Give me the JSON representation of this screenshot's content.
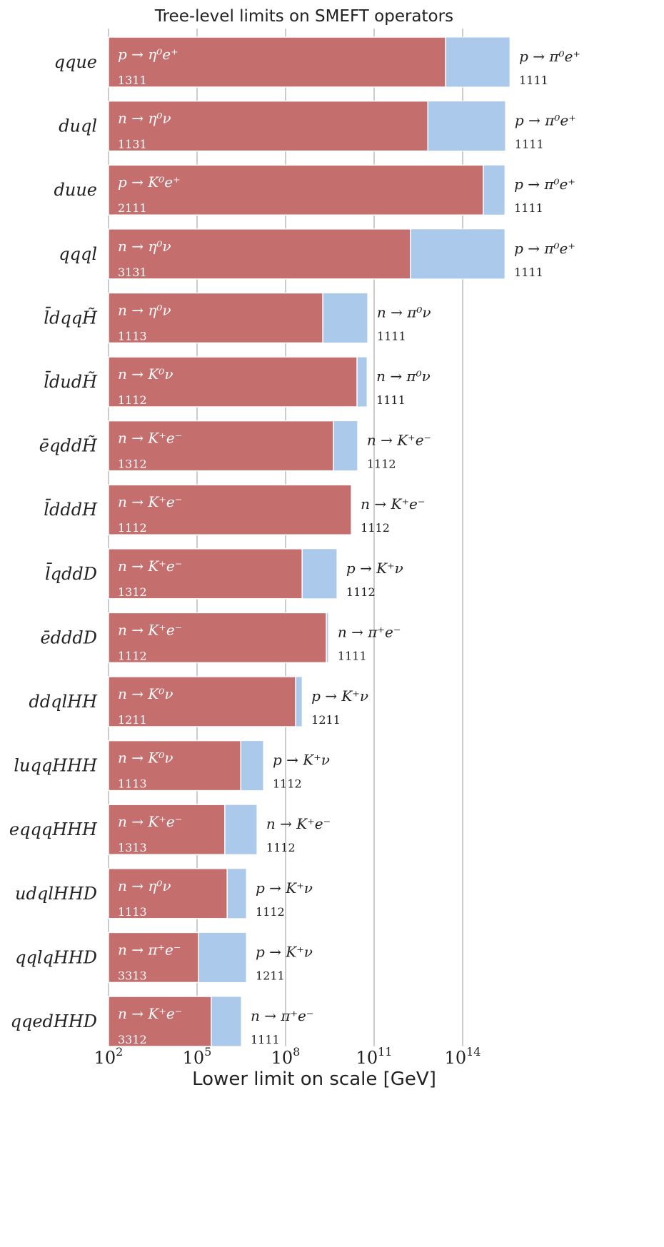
{
  "chart_data": {
    "type": "bar",
    "orientation": "horizontal",
    "title": "Tree-level limits on SMEFT operators",
    "xlabel": "Lower limit on scale [GeV]",
    "xscale": "log",
    "xlim_log10": [
      2,
      16
    ],
    "xticks": [
      {
        "exp": 2,
        "label": "10",
        "sup": "2"
      },
      {
        "exp": 5,
        "label": "10",
        "sup": "5"
      },
      {
        "exp": 8,
        "label": "10",
        "sup": "8"
      },
      {
        "exp": 11,
        "label": "10",
        "sup": "11"
      },
      {
        "exp": 14,
        "label": "10",
        "sup": "14"
      }
    ],
    "grid": "vertical",
    "colors": {
      "red": "#c46e6e",
      "blue": "#abc9eb"
    },
    "series_names": [
      "red: limit from channel labelled inside bar",
      "blue: limit from channel labelled beside bar"
    ],
    "rows": [
      {
        "operator": "qque",
        "red_log10": 13.42,
        "red_channel": "p → η⁰e⁺",
        "red_flavour": "1311",
        "blue_log10": 15.6,
        "blue_channel": "p → π⁰e⁺",
        "blue_flavour": "1111"
      },
      {
        "operator": "duql",
        "red_log10": 12.82,
        "red_channel": "n → η⁰ν",
        "red_flavour": "1131",
        "blue_log10": 15.45,
        "blue_channel": "p → π⁰e⁺",
        "blue_flavour": "1111"
      },
      {
        "operator": "duue",
        "red_log10": 14.7,
        "red_channel": "p → K⁰e⁺",
        "red_flavour": "2111",
        "blue_log10": 15.43,
        "blue_channel": "p → π⁰e⁺",
        "blue_flavour": "1111"
      },
      {
        "operator": "qqql",
        "red_log10": 12.23,
        "red_channel": "n → η⁰ν",
        "red_flavour": "3131",
        "blue_log10": 15.43,
        "blue_channel": "p → π⁰e⁺",
        "blue_flavour": "1111"
      },
      {
        "operator": "l̄dqqH̃",
        "red_log10": 9.26,
        "red_channel": "n → η⁰ν",
        "red_flavour": "1113",
        "blue_log10": 10.78,
        "blue_channel": "n → π⁰ν",
        "blue_flavour": "1111"
      },
      {
        "operator": "l̄dudH̃",
        "red_log10": 10.42,
        "red_channel": "n → K⁰ν",
        "red_flavour": "1112",
        "blue_log10": 10.76,
        "blue_channel": "n → π⁰ν",
        "blue_flavour": "1111"
      },
      {
        "operator": "ēqddH̃",
        "red_log10": 9.62,
        "red_channel": "n → K⁺e⁻",
        "red_flavour": "1312",
        "blue_log10": 10.44,
        "blue_channel": "n → K⁺e⁻",
        "blue_flavour": "1112"
      },
      {
        "operator": "l̄dddH",
        "red_log10": 10.23,
        "red_channel": "n → K⁺e⁻",
        "red_flavour": "1112",
        "blue_log10": 10.23,
        "blue_channel": "n → K⁺e⁻",
        "blue_flavour": "1112"
      },
      {
        "operator": "l̄qddD",
        "red_log10": 8.56,
        "red_channel": "n → K⁺e⁻",
        "red_flavour": "1312",
        "blue_log10": 9.74,
        "blue_channel": "p → K⁺ν",
        "blue_flavour": "1112"
      },
      {
        "operator": "ēdddD",
        "red_log10": 9.38,
        "red_channel": "n → K⁺e⁻",
        "red_flavour": "1112",
        "blue_log10": 9.45,
        "blue_channel": "n → π⁺e⁻",
        "blue_flavour": "1111"
      },
      {
        "operator": "ddqlHH",
        "red_log10": 8.34,
        "red_channel": "n → K⁰ν",
        "red_flavour": "1211",
        "blue_log10": 8.56,
        "blue_channel": "p → K⁺ν",
        "blue_flavour": "1211"
      },
      {
        "operator": "luqqHHH",
        "red_log10": 6.48,
        "red_channel": "n → K⁰ν",
        "red_flavour": "1113",
        "blue_log10": 7.25,
        "blue_channel": "p → K⁺ν",
        "blue_flavour": "1112"
      },
      {
        "operator": "eqqqHHH",
        "red_log10": 5.94,
        "red_channel": "n → K⁺e⁻",
        "red_flavour": "1313",
        "blue_log10": 7.03,
        "blue_channel": "n → K⁺e⁻",
        "blue_flavour": "1112"
      },
      {
        "operator": "udqlHHD",
        "red_log10": 6.02,
        "red_channel": "n → η⁰ν",
        "red_flavour": "1113",
        "blue_log10": 6.67,
        "blue_channel": "p → K⁺ν",
        "blue_flavour": "1112"
      },
      {
        "operator": "qqlqHHD",
        "red_log10": 5.05,
        "red_channel": "n → π⁺e⁻",
        "red_flavour": "3313",
        "blue_log10": 6.67,
        "blue_channel": "p → K⁺ν",
        "blue_flavour": "1211"
      },
      {
        "operator": "qqedHHD",
        "red_log10": 5.48,
        "red_channel": "n → K⁺e⁻",
        "red_flavour": "3312",
        "blue_log10": 6.5,
        "blue_channel": "n → π⁺e⁻",
        "blue_flavour": "1111"
      }
    ]
  }
}
